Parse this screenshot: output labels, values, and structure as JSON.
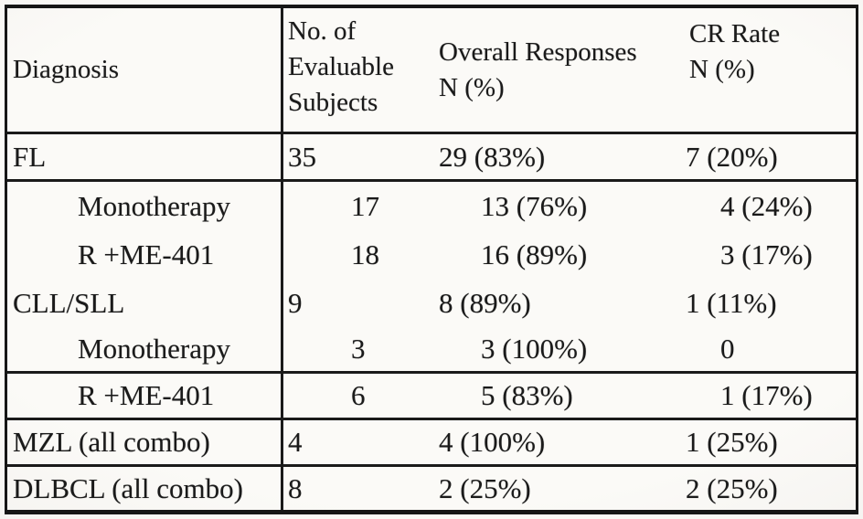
{
  "colors": {
    "background": "#f7f5f2",
    "text": "#1a1a1a",
    "rule": "#1a1a1a"
  },
  "table": {
    "headers": {
      "diagnosis": "Diagnosis",
      "subjects": "No. of\nEvaluable\nSubjects",
      "overall": "Overall Responses\nN (%)",
      "cr": "CR Rate\nN (%)"
    },
    "rows": [
      {
        "diagnosis": "FL",
        "indent": false,
        "subjects": "35",
        "overall": "29 (83%)",
        "cr": "7 (20%)"
      },
      {
        "diagnosis": "Monotherapy",
        "indent": true,
        "subjects": "17",
        "overall": "13 (76%)",
        "cr": "4 (24%)"
      },
      {
        "diagnosis": "R +ME-401",
        "indent": true,
        "subjects": "18",
        "overall": "16 (89%)",
        "cr": "3 (17%)"
      },
      {
        "diagnosis": "CLL/SLL",
        "indent": false,
        "subjects": "9",
        "overall": "8 (89%)",
        "cr": "1 (11%)"
      },
      {
        "diagnosis": "Monotherapy",
        "indent": true,
        "subjects": "3",
        "overall": "3 (100%)",
        "cr": "0"
      },
      {
        "diagnosis": "R +ME-401",
        "indent": true,
        "subjects": "6",
        "overall": "5 (83%)",
        "cr": "1 (17%)"
      },
      {
        "diagnosis": "MZL (all combo)",
        "indent": false,
        "subjects": "4",
        "overall": "4 (100%)",
        "cr": "1 (25%)"
      },
      {
        "diagnosis": "DLBCL (all combo)",
        "indent": false,
        "subjects": "8",
        "overall": "2 (25%)",
        "cr": "2 (25%)"
      }
    ]
  }
}
